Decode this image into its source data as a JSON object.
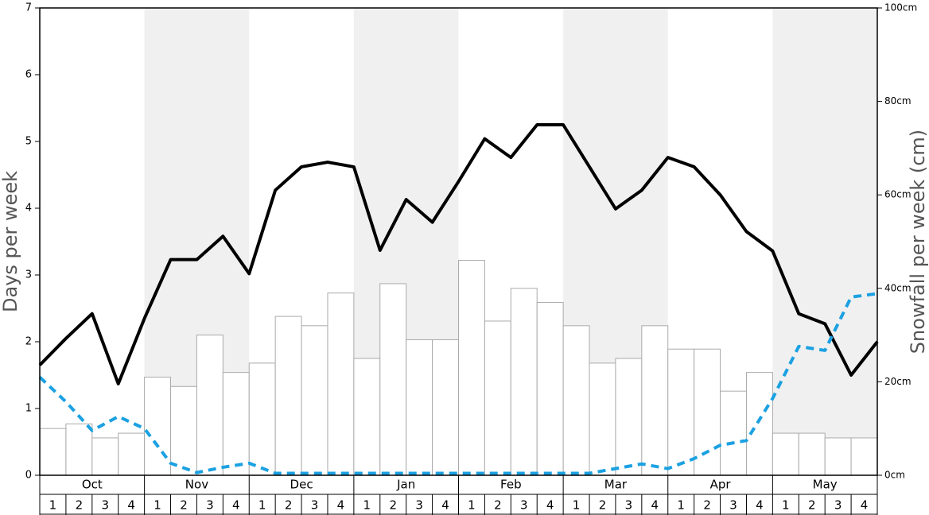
{
  "chart_data": {
    "type": "combo",
    "y_label": "Days per week",
    "y2_label": "Snowfall per week (cm)",
    "months": [
      "Oct",
      "Nov",
      "Dec",
      "Jan",
      "Feb",
      "Mar",
      "Apr",
      "May"
    ],
    "weeks": [
      "1",
      "2",
      "3",
      "4"
    ],
    "shaded_months": [
      false,
      true,
      false,
      true,
      false,
      true,
      false,
      true
    ],
    "ylim": [
      0,
      7
    ],
    "yticks": [
      0,
      1,
      2,
      3,
      4,
      5,
      6,
      7
    ],
    "y2lim": [
      0,
      100
    ],
    "y2ticks": [
      {
        "value": 0,
        "label": "0cm"
      },
      {
        "value": 20,
        "label": "20cm"
      },
      {
        "value": 40,
        "label": "40cm"
      },
      {
        "value": 60,
        "label": "60cm"
      },
      {
        "value": 80,
        "label": "80cm"
      },
      {
        "value": 100,
        "label": "100cm"
      }
    ],
    "bars": {
      "axis": "y2",
      "color": "#ffffff",
      "values": [
        10,
        11,
        8,
        9,
        21,
        19,
        30,
        22,
        24,
        34,
        32,
        39,
        25,
        41,
        29,
        29,
        46,
        33,
        40,
        37,
        32,
        24,
        25,
        32,
        27,
        27,
        18,
        22,
        9,
        9,
        8,
        8
      ]
    },
    "series": [
      {
        "color": "#000000",
        "dashed": false,
        "values": [
          1.65,
          2.05,
          2.42,
          1.37,
          2.35,
          3.23,
          3.23,
          3.58,
          3.02,
          4.27,
          4.62,
          4.69,
          4.62,
          3.37,
          4.13,
          3.79,
          4.4,
          5.04,
          4.76,
          5.25,
          5.25,
          4.62,
          3.99,
          4.27,
          4.76,
          4.62,
          4.2,
          3.65,
          3.36,
          2.42,
          2.27,
          1.5,
          2.0
        ]
      },
      {
        "color": "#1ba1e2",
        "dashed": true,
        "values": [
          1.47,
          1.1,
          0.67,
          0.88,
          0.7,
          0.18,
          0.04,
          0.12,
          0.18,
          0.03,
          0.03,
          0.03,
          0.03,
          0.03,
          0.03,
          0.03,
          0.03,
          0.03,
          0.03,
          0.03,
          0.03,
          0.03,
          0.1,
          0.17,
          0.1,
          0.25,
          0.45,
          0.52,
          1.15,
          1.93,
          1.87,
          2.67,
          2.72
        ]
      }
    ]
  }
}
